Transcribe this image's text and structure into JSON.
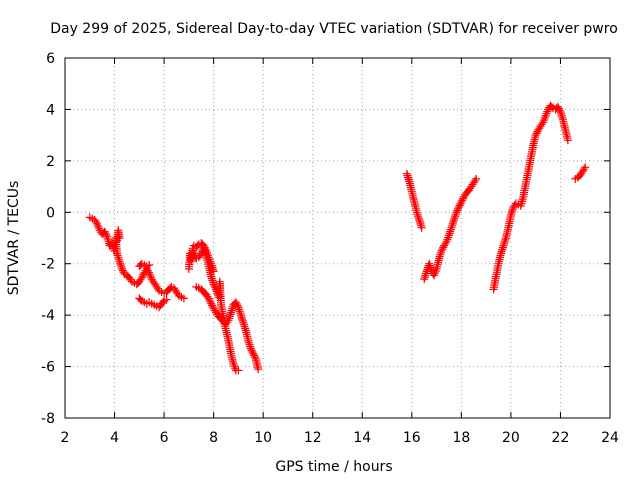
{
  "chart_data": {
    "type": "scatter",
    "title": "Day 299 of 2025, Sidereal Day-to-day VTEC variation (SDTVAR) for receiver pwro",
    "xlabel": "GPS time / hours",
    "ylabel": "SDTVAR / TECUs",
    "xlim": [
      2,
      24
    ],
    "ylim": [
      -8,
      6
    ],
    "xticks": [
      2,
      4,
      6,
      8,
      10,
      12,
      14,
      16,
      18,
      20,
      22,
      24
    ],
    "yticks": [
      -8,
      -6,
      -4,
      -2,
      0,
      2,
      4,
      6
    ],
    "grid": true,
    "marker": "plus",
    "colors": {
      "series": "#ff0000",
      "axes": "#000000",
      "grid": "#a0a0a0"
    },
    "series": [
      {
        "segments": [
          [
            [
              3.0,
              -0.2
            ],
            [
              3.1,
              -0.25
            ],
            [
              3.2,
              -0.3
            ],
            [
              3.3,
              -0.45
            ],
            [
              3.4,
              -0.7
            ],
            [
              3.5,
              -0.85
            ],
            [
              3.6,
              -0.75
            ],
            [
              3.7,
              -0.95
            ],
            [
              3.8,
              -1.3
            ],
            [
              3.9,
              -1.2
            ],
            [
              4.0,
              -1.5
            ],
            [
              4.05,
              -1.0
            ],
            [
              4.1,
              -1.6
            ],
            [
              4.2,
              -1.9
            ],
            [
              4.3,
              -2.2
            ],
            [
              4.4,
              -2.4
            ],
            [
              4.5,
              -2.45
            ],
            [
              4.6,
              -2.55
            ],
            [
              4.7,
              -2.7
            ],
            [
              4.8,
              -2.75
            ],
            [
              4.9,
              -2.8
            ],
            [
              5.0,
              -2.7
            ],
            [
              5.1,
              -2.55
            ],
            [
              5.2,
              -2.35
            ],
            [
              5.3,
              -2.2
            ],
            [
              5.4,
              -2.35
            ],
            [
              5.5,
              -2.6
            ],
            [
              5.6,
              -2.75
            ],
            [
              5.7,
              -2.9
            ],
            [
              5.8,
              -3.05
            ],
            [
              5.9,
              -3.1
            ],
            [
              6.0,
              -3.15
            ],
            [
              6.1,
              -3.1
            ],
            [
              6.2,
              -3.0
            ],
            [
              6.3,
              -2.9
            ],
            [
              6.4,
              -2.95
            ],
            [
              6.5,
              -3.1
            ],
            [
              6.6,
              -3.25
            ],
            [
              6.7,
              -3.3
            ],
            [
              6.8,
              -3.35
            ]
          ],
          [
            [
              4.1,
              -1.1
            ],
            [
              4.15,
              -0.7
            ],
            [
              4.2,
              -1.0
            ]
          ],
          [
            [
              5.0,
              -2.1
            ],
            [
              5.1,
              -2.0
            ],
            [
              5.2,
              -2.05
            ],
            [
              5.3,
              -2.1
            ],
            [
              5.4,
              -2.05
            ]
          ],
          [
            [
              5.0,
              -3.35
            ],
            [
              5.1,
              -3.45
            ],
            [
              5.2,
              -3.5
            ],
            [
              5.3,
              -3.55
            ],
            [
              5.4,
              -3.5
            ],
            [
              5.5,
              -3.55
            ],
            [
              5.6,
              -3.6
            ],
            [
              5.7,
              -3.65
            ],
            [
              5.8,
              -3.7
            ],
            [
              5.9,
              -3.55
            ],
            [
              6.0,
              -3.45
            ],
            [
              6.1,
              -3.4
            ]
          ],
          [
            [
              7.0,
              -2.2
            ],
            [
              7.05,
              -1.6
            ],
            [
              7.1,
              -1.9
            ],
            [
              7.15,
              -1.4
            ],
            [
              7.2,
              -1.6
            ],
            [
              7.3,
              -1.8
            ],
            [
              7.4,
              -1.75
            ],
            [
              7.5,
              -1.6
            ],
            [
              7.6,
              -1.4
            ],
            [
              7.7,
              -1.7
            ],
            [
              7.8,
              -2.1
            ],
            [
              7.9,
              -2.5
            ],
            [
              8.0,
              -2.8
            ],
            [
              8.1,
              -3.0
            ],
            [
              8.2,
              -3.3
            ],
            [
              8.25,
              -2.7
            ],
            [
              8.3,
              -3.6
            ],
            [
              8.4,
              -4.1
            ],
            [
              8.5,
              -4.6
            ],
            [
              8.6,
              -5.0
            ],
            [
              8.7,
              -5.5
            ],
            [
              8.8,
              -5.9
            ],
            [
              8.9,
              -6.15
            ],
            [
              9.0,
              -6.15
            ]
          ],
          [
            [
              7.2,
              -1.3
            ],
            [
              7.3,
              -1.35
            ],
            [
              7.4,
              -1.25
            ],
            [
              7.5,
              -1.2
            ],
            [
              7.6,
              -1.3
            ],
            [
              7.7,
              -1.5
            ],
            [
              7.8,
              -1.75
            ],
            [
              7.9,
              -2.0
            ],
            [
              8.0,
              -2.3
            ]
          ],
          [
            [
              7.3,
              -2.9
            ],
            [
              7.4,
              -2.95
            ],
            [
              7.5,
              -3.0
            ],
            [
              7.6,
              -3.1
            ],
            [
              7.7,
              -3.2
            ],
            [
              7.8,
              -3.35
            ],
            [
              7.9,
              -3.55
            ],
            [
              8.0,
              -3.75
            ],
            [
              8.1,
              -3.9
            ],
            [
              8.2,
              -4.05
            ],
            [
              8.3,
              -4.15
            ],
            [
              8.4,
              -4.25
            ],
            [
              8.5,
              -4.35
            ],
            [
              8.6,
              -4.2
            ],
            [
              8.7,
              -3.9
            ],
            [
              8.8,
              -3.6
            ],
            [
              8.9,
              -3.5
            ],
            [
              9.0,
              -3.7
            ],
            [
              9.1,
              -4.0
            ],
            [
              9.2,
              -4.3
            ],
            [
              9.3,
              -4.6
            ],
            [
              9.4,
              -5.0
            ],
            [
              9.5,
              -5.3
            ],
            [
              9.6,
              -5.5
            ],
            [
              9.7,
              -5.7
            ],
            [
              9.8,
              -6.1
            ]
          ],
          [
            [
              15.8,
              1.5
            ],
            [
              15.9,
              1.2
            ],
            [
              16.0,
              0.8
            ],
            [
              16.1,
              0.4
            ],
            [
              16.2,
              0.0
            ],
            [
              16.3,
              -0.3
            ],
            [
              16.4,
              -0.6
            ]
          ],
          [
            [
              16.5,
              -2.6
            ],
            [
              16.6,
              -2.3
            ],
            [
              16.7,
              -2.0
            ],
            [
              16.8,
              -2.3
            ],
            [
              16.9,
              -2.45
            ],
            [
              17.0,
              -2.2
            ],
            [
              17.1,
              -1.8
            ],
            [
              17.2,
              -1.5
            ],
            [
              17.3,
              -1.3
            ],
            [
              17.4,
              -1.15
            ],
            [
              17.5,
              -0.9
            ],
            [
              17.6,
              -0.6
            ],
            [
              17.7,
              -0.3
            ],
            [
              17.8,
              0.0
            ],
            [
              17.9,
              0.2
            ],
            [
              18.0,
              0.4
            ],
            [
              18.1,
              0.6
            ],
            [
              18.2,
              0.75
            ],
            [
              18.3,
              0.85
            ],
            [
              18.4,
              1.0
            ],
            [
              18.5,
              1.15
            ],
            [
              18.6,
              1.3
            ]
          ],
          [
            [
              19.3,
              -3.0
            ],
            [
              19.4,
              -2.5
            ],
            [
              19.5,
              -2.0
            ],
            [
              19.6,
              -1.6
            ],
            [
              19.7,
              -1.3
            ],
            [
              19.8,
              -1.0
            ],
            [
              19.9,
              -0.6
            ],
            [
              20.0,
              -0.1
            ],
            [
              20.1,
              0.2
            ],
            [
              20.2,
              0.35
            ],
            [
              20.3,
              0.3
            ],
            [
              20.4,
              0.25
            ],
            [
              20.5,
              0.6
            ],
            [
              20.6,
              1.1
            ],
            [
              20.7,
              1.6
            ],
            [
              20.8,
              2.1
            ],
            [
              20.9,
              2.6
            ],
            [
              21.0,
              3.0
            ],
            [
              21.1,
              3.2
            ],
            [
              21.2,
              3.35
            ],
            [
              21.3,
              3.5
            ],
            [
              21.4,
              3.75
            ],
            [
              21.5,
              4.0
            ],
            [
              21.6,
              4.15
            ],
            [
              21.7,
              4.05
            ],
            [
              21.8,
              4.0
            ],
            [
              21.9,
              4.1
            ],
            [
              22.0,
              3.9
            ],
            [
              22.1,
              3.6
            ],
            [
              22.2,
              3.2
            ],
            [
              22.3,
              2.8
            ]
          ],
          [
            [
              22.6,
              1.3
            ],
            [
              22.7,
              1.35
            ],
            [
              22.8,
              1.45
            ],
            [
              22.9,
              1.6
            ],
            [
              23.0,
              1.75
            ]
          ]
        ]
      }
    ]
  }
}
